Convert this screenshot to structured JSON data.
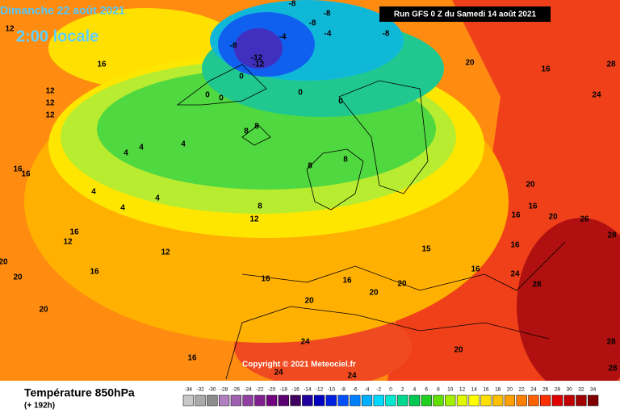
{
  "header": {
    "date": "Dimanche 22 août 2021",
    "time": "2:00 locale",
    "run": "Run GFS 0 Z du Samedi 14 août 2021"
  },
  "copyright": "Copyright © 2021 Meteociel.fr",
  "footer": {
    "title": "Température 850hPa",
    "lead": "(+ 192h)"
  },
  "legend": {
    "values": [
      -34,
      -32,
      -30,
      -28,
      -26,
      -24,
      -22,
      -20,
      -18,
      -16,
      -14,
      -12,
      -10,
      -8,
      -6,
      -4,
      -2,
      0,
      2,
      4,
      6,
      8,
      10,
      12,
      14,
      16,
      18,
      20,
      22,
      24,
      26,
      28,
      30,
      32,
      34
    ],
    "colors": [
      "#c8c8c8",
      "#aaaaaa",
      "#8c8c8c",
      "#b080c0",
      "#a060b0",
      "#9040a0",
      "#802090",
      "#700080",
      "#5a0070",
      "#400060",
      "#2000a0",
      "#0000c0",
      "#0020e0",
      "#0050ff",
      "#0080ff",
      "#00b0ff",
      "#00d8ff",
      "#00e8d0",
      "#00d890",
      "#00c850",
      "#20d020",
      "#60e000",
      "#a0f000",
      "#e0f800",
      "#ffff00",
      "#ffe000",
      "#ffc000",
      "#ffa000",
      "#ff8000",
      "#ff6000",
      "#ff3000",
      "#e00000",
      "#c00000",
      "#a00000",
      "#800000"
    ]
  },
  "contour_labels": [
    16,
    12,
    12,
    12,
    16,
    16,
    16,
    12,
    12,
    16,
    20,
    20,
    20,
    16,
    16,
    4,
    4,
    4,
    4,
    4,
    4,
    8,
    12,
    8,
    8,
    0,
    0,
    0,
    0,
    0,
    -4,
    -4,
    -8,
    -8,
    -8,
    -8,
    -12,
    -12,
    -8,
    20,
    16,
    24,
    28,
    20,
    16,
    20,
    26,
    28,
    16,
    16,
    16,
    15,
    20,
    20,
    16,
    20,
    24,
    28,
    24,
    24,
    24,
    20,
    28,
    28,
    8,
    8,
    12
  ]
}
